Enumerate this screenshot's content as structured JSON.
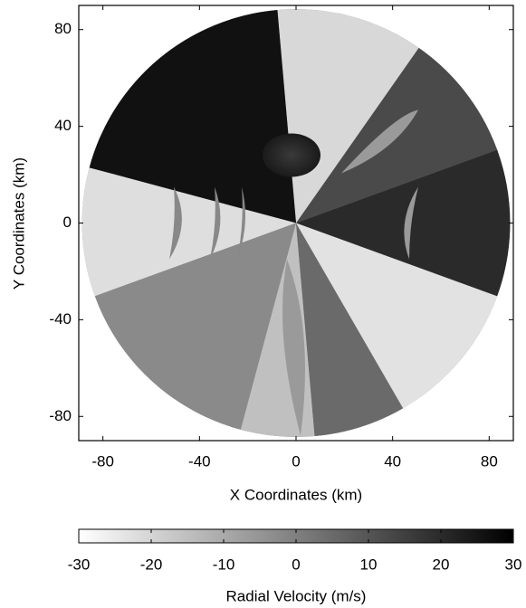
{
  "chart_data": {
    "type": "image",
    "xlabel": "X Coordinates (km)",
    "ylabel": "Y Coordinates (km)",
    "xlim": [
      -90,
      90
    ],
    "ylim": [
      -90,
      90
    ],
    "xticks": [
      -80,
      -40,
      0,
      40,
      80
    ],
    "yticks": [
      -80,
      -40,
      0,
      40,
      80
    ],
    "colorbar": {
      "label": "Radial Velocity (m/s)",
      "clim": [
        -30,
        30
      ],
      "ticks": [
        -30,
        -20,
        -10,
        0,
        10,
        20,
        30
      ],
      "colors": [
        "#ffffff",
        "#000000"
      ]
    }
  }
}
